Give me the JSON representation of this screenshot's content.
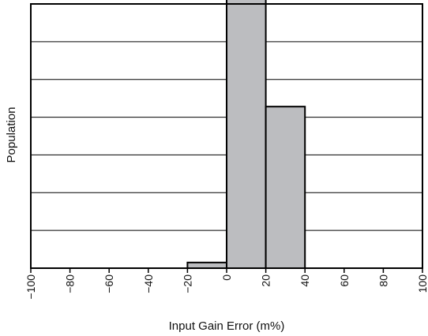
{
  "chart_data": {
    "type": "bar",
    "title": "",
    "xlabel": "Input Gain Error (m%)",
    "ylabel": "Population",
    "xlim": [
      -100,
      100
    ],
    "x_ticks": [
      -100,
      -80,
      -60,
      -40,
      -20,
      0,
      20,
      40,
      60,
      80,
      100
    ],
    "x_tick_labels": [
      "−100",
      "−80",
      "−60",
      "−40",
      "−20",
      "0",
      "20",
      "40",
      "60",
      "80",
      "100"
    ],
    "ylim": [
      0,
      7
    ],
    "y_gridlines": [
      1,
      2,
      3,
      4,
      5,
      6
    ],
    "y_tick_labels_shown": false,
    "grid": "horizontal",
    "bins": [
      {
        "from": -20,
        "to": 0,
        "value": 0.15
      },
      {
        "from": 0,
        "to": 20,
        "value": 7.15
      },
      {
        "from": 20,
        "to": 40,
        "value": 4.28
      }
    ],
    "colors": {
      "bar_fill": "#bcbdc0",
      "bar_stroke": "#000000",
      "grid": "#000000",
      "frame": "#000000"
    }
  }
}
